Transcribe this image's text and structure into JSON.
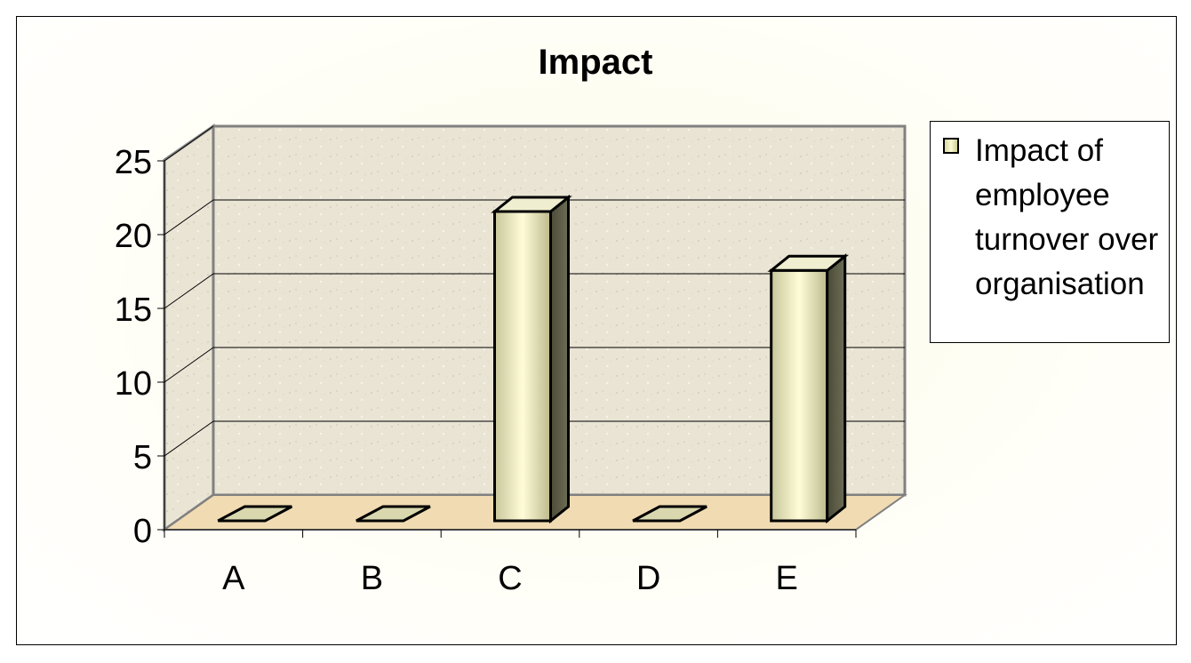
{
  "chart_data": {
    "type": "bar",
    "title": "Impact",
    "categories": [
      "A",
      "B",
      "C",
      "D",
      "E"
    ],
    "series": [
      {
        "name": "Impact of employee turnover over organisation",
        "values": [
          0,
          0,
          21,
          0,
          17
        ]
      }
    ],
    "ylim": [
      0,
      25
    ],
    "yticks": [
      0,
      5,
      10,
      15,
      20,
      25
    ],
    "xlabel": "",
    "ylabel": "",
    "grid": true,
    "legend": "right",
    "style": "3d-column",
    "colors": {
      "bar": "#e8e6b8",
      "bar_side": "#5a5a44",
      "wall": "#e8e2d2",
      "floor": "#f0d9b0"
    }
  }
}
